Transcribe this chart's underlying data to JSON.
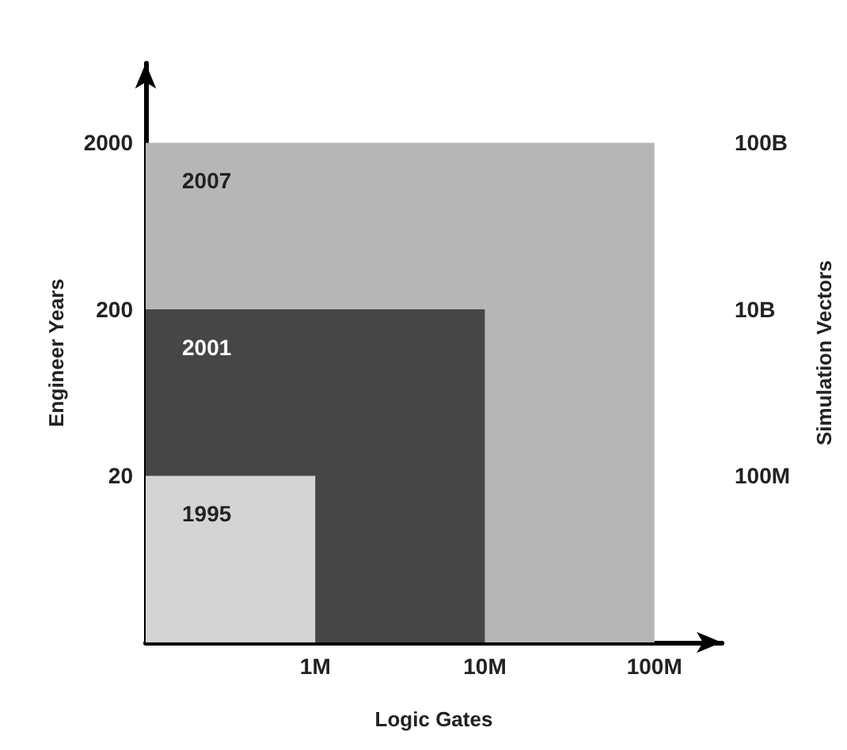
{
  "chart_data": {
    "type": "area",
    "xlabel": "Logic Gates",
    "ylabel": "Engineer Years",
    "y2label": "Simulation Vectors",
    "log": "xy",
    "xlim": [
      100000,
      250000000
    ],
    "xticks": [
      {
        "value": 1000000,
        "label": "1M"
      },
      {
        "value": 10000000,
        "label": "10M"
      },
      {
        "value": 100000000,
        "label": "100M"
      }
    ],
    "ylim": [
      2,
      6000
    ],
    "yticks": [
      20,
      200,
      2000
    ],
    "annotations": [
      "100M",
      "10B",
      "100B"
    ],
    "series": [
      {
        "name": "2007",
        "color": "#b6b6b6",
        "x": [
          100000,
          100000000
        ],
        "values": [
          2000,
          2000
        ]
      },
      {
        "name": "2001",
        "color": "#464646",
        "x": [
          100000,
          10000000
        ],
        "values": [
          200,
          200
        ]
      },
      {
        "name": "1995",
        "color": "#d4d4d4",
        "x": [
          100000,
          1000000
        ],
        "values": [
          20,
          20
        ]
      }
    ]
  }
}
